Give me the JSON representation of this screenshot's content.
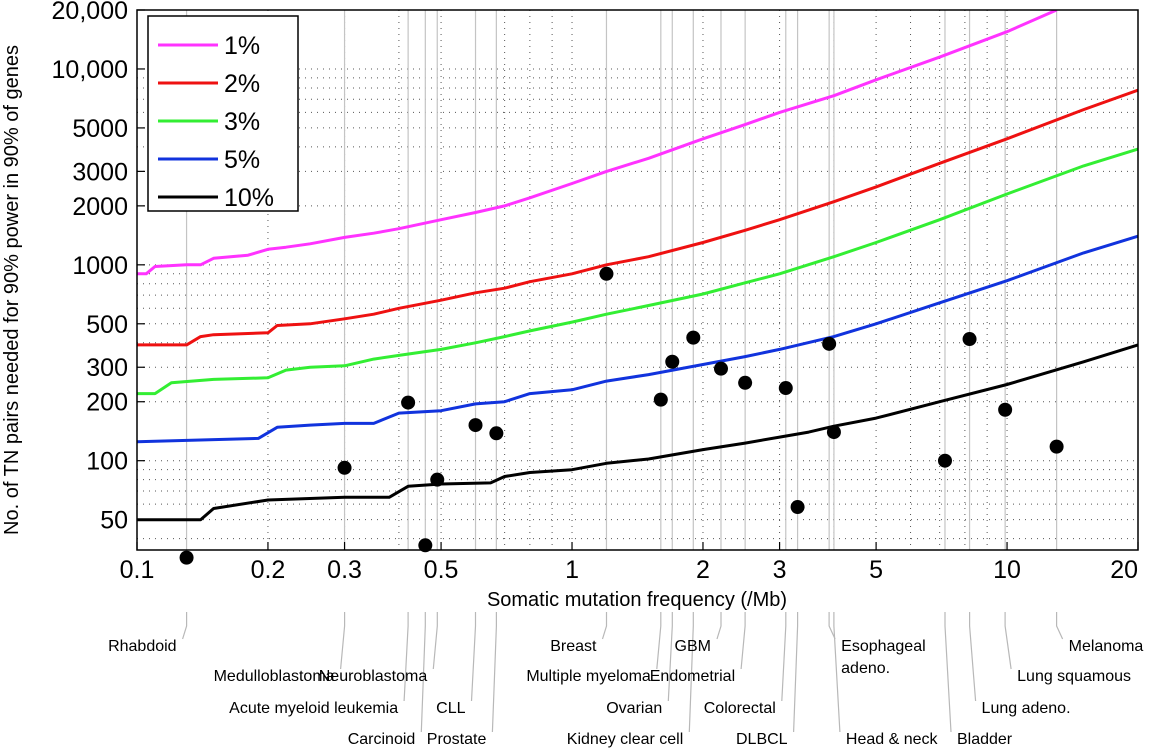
{
  "chart_data": {
    "type": "line",
    "xlabel": "Somatic mutation frequency (/Mb)",
    "ylabel": "No. of TN pairs needed for 90% power in 90% of genes",
    "x_scale": "log",
    "y_scale": "log",
    "xlim": [
      0.1,
      20
    ],
    "ylim": [
      35,
      20000
    ],
    "x_ticks": [
      0.1,
      0.2,
      0.3,
      0.5,
      1,
      2,
      3,
      5,
      10,
      20
    ],
    "x_tick_labels": [
      "0.1",
      "0.2",
      "0.3",
      "0.5",
      "1",
      "2",
      "3",
      "5",
      "10",
      "20"
    ],
    "y_ticks": [
      50,
      100,
      200,
      300,
      500,
      1000,
      2000,
      3000,
      5000,
      10000,
      20000
    ],
    "y_tick_labels": [
      "50",
      "100",
      "200",
      "300",
      "500",
      "1000",
      "2000",
      "3000",
      "5000",
      "10,000",
      "20,000"
    ],
    "grid": "dotted",
    "legend_position": "top-left",
    "series": [
      {
        "name": "1%",
        "color": "#ff33ff",
        "x": [
          0.1,
          0.105,
          0.11,
          0.13,
          0.14,
          0.15,
          0.18,
          0.2,
          0.22,
          0.25,
          0.3,
          0.35,
          0.4,
          0.5,
          0.6,
          0.7,
          0.8,
          1,
          1.2,
          1.5,
          2,
          2.5,
          3,
          4,
          5,
          7,
          10,
          13
        ],
        "y": [
          900,
          900,
          980,
          1000,
          1000,
          1080,
          1120,
          1200,
          1230,
          1280,
          1380,
          1450,
          1530,
          1700,
          1850,
          2000,
          2200,
          2600,
          3000,
          3500,
          4400,
          5200,
          6000,
          7300,
          8800,
          11500,
          15500,
          20000
        ]
      },
      {
        "name": "2%",
        "color": "#ee1111",
        "x": [
          0.1,
          0.13,
          0.14,
          0.15,
          0.2,
          0.21,
          0.25,
          0.3,
          0.35,
          0.4,
          0.5,
          0.6,
          0.7,
          0.8,
          1,
          1.2,
          1.5,
          2,
          2.5,
          3,
          4,
          5,
          7,
          10,
          15,
          20
        ],
        "y": [
          390,
          390,
          430,
          440,
          450,
          490,
          500,
          530,
          560,
          600,
          660,
          720,
          760,
          820,
          900,
          1000,
          1100,
          1300,
          1500,
          1700,
          2100,
          2500,
          3300,
          4400,
          6200,
          7800
        ]
      },
      {
        "name": "3%",
        "color": "#33ee33",
        "x": [
          0.1,
          0.11,
          0.12,
          0.15,
          0.2,
          0.22,
          0.25,
          0.3,
          0.35,
          0.4,
          0.5,
          0.6,
          0.7,
          0.8,
          1,
          1.2,
          1.5,
          2,
          2.5,
          3,
          4,
          5,
          7,
          10,
          15,
          20
        ],
        "y": [
          220,
          220,
          250,
          260,
          265,
          290,
          300,
          305,
          330,
          345,
          370,
          400,
          430,
          460,
          510,
          560,
          620,
          710,
          810,
          900,
          1100,
          1300,
          1700,
          2300,
          3200,
          3900
        ]
      },
      {
        "name": "5%",
        "color": "#1133dd",
        "x": [
          0.1,
          0.19,
          0.21,
          0.25,
          0.3,
          0.35,
          0.4,
          0.5,
          0.6,
          0.7,
          0.8,
          1,
          1.2,
          1.5,
          2,
          2.5,
          3,
          4,
          5,
          7,
          10,
          15,
          20
        ],
        "y": [
          125,
          130,
          148,
          152,
          155,
          155,
          175,
          180,
          195,
          200,
          220,
          230,
          255,
          275,
          310,
          340,
          370,
          430,
          500,
          640,
          830,
          1150,
          1400
        ]
      },
      {
        "name": "10%",
        "color": "#000000",
        "x": [
          0.1,
          0.14,
          0.15,
          0.2,
          0.3,
          0.38,
          0.42,
          0.5,
          0.65,
          0.7,
          0.8,
          1,
          1.2,
          1.5,
          2,
          2.5,
          3,
          3.5,
          4,
          5,
          7,
          10,
          15,
          20
        ],
        "y": [
          50,
          50,
          57,
          63,
          65,
          65,
          74,
          76,
          77,
          83,
          87,
          90,
          97,
          102,
          114,
          123,
          132,
          140,
          150,
          165,
          200,
          245,
          320,
          390
        ]
      }
    ],
    "points": [
      {
        "name": "Rhabdoid",
        "x": 0.13,
        "y": 32
      },
      {
        "name": "Medulloblastoma",
        "x": 0.3,
        "y": 92
      },
      {
        "name": "Acute myeloid leukemia",
        "x": 0.42,
        "y": 198
      },
      {
        "name": "Carcinoid",
        "x": 0.46,
        "y": 37
      },
      {
        "name": "Neuroblastoma",
        "x": 0.49,
        "y": 80
      },
      {
        "name": "CLL",
        "x": 0.6,
        "y": 152
      },
      {
        "name": "Prostate",
        "x": 0.67,
        "y": 138
      },
      {
        "name": "Breast",
        "x": 1.2,
        "y": 900
      },
      {
        "name": "Multiple myeloma",
        "x": 1.6,
        "y": 205
      },
      {
        "name": "Kidney clear cell",
        "x": 1.7,
        "y": 320
      },
      {
        "name": "Ovarian",
        "x": 1.9,
        "y": 425
      },
      {
        "name": "GBM",
        "x": 2.2,
        "y": 295
      },
      {
        "name": "Endometrial",
        "x": 2.5,
        "y": 250
      },
      {
        "name": "Colorectal",
        "x": 3.1,
        "y": 235
      },
      {
        "name": "DLBCL",
        "x": 3.3,
        "y": 58
      },
      {
        "name": "Head & neck",
        "x": 3.9,
        "y": 395
      },
      {
        "name": "Esophageal adeno.",
        "x": 4.0,
        "y": 140
      },
      {
        "name": "Bladder",
        "x": 7.2,
        "y": 100
      },
      {
        "name": "Lung adeno.",
        "x": 8.2,
        "y": 418
      },
      {
        "name": "Lung squamous",
        "x": 9.9,
        "y": 182
      },
      {
        "name": "Melanoma",
        "x": 13,
        "y": 118
      }
    ],
    "cancer_labels": [
      {
        "lines": [
          "Rhabdoid"
        ],
        "x": 0.13,
        "anchor": "end",
        "row": 1
      },
      {
        "lines": [
          "Medulloblastoma"
        ],
        "x": 0.3,
        "anchor": "end",
        "row": 2
      },
      {
        "lines": [
          "Acute myeloid leukemia"
        ],
        "x": 0.42,
        "anchor": "end",
        "row": 3
      },
      {
        "lines": [
          "Carcinoid"
        ],
        "x": 0.46,
        "anchor": "end",
        "row": 4
      },
      {
        "lines": [
          "Neuroblastoma"
        ],
        "x": 0.49,
        "anchor": "end",
        "row": 2
      },
      {
        "lines": [
          "CLL"
        ],
        "x": 0.6,
        "anchor": "end",
        "row": 3
      },
      {
        "lines": [
          "Prostate"
        ],
        "x": 0.67,
        "anchor": "end",
        "row": 4
      },
      {
        "lines": [
          "Breast"
        ],
        "x": 1.2,
        "anchor": "end",
        "row": 1
      },
      {
        "lines": [
          "Multiple myeloma"
        ],
        "x": 1.6,
        "anchor": "end",
        "row": 2
      },
      {
        "lines": [
          "Ovarian"
        ],
        "x": 1.7,
        "anchor": "end",
        "row": 3
      },
      {
        "lines": [
          "Kidney clear cell"
        ],
        "x": 1.9,
        "anchor": "end",
        "row": 4
      },
      {
        "lines": [
          "GBM"
        ],
        "x": 2.2,
        "anchor": "end",
        "row": 1
      },
      {
        "lines": [
          "Endometrial"
        ],
        "x": 2.5,
        "anchor": "end",
        "row": 2
      },
      {
        "lines": [
          "Colorectal"
        ],
        "x": 3.1,
        "anchor": "end",
        "row": 3
      },
      {
        "lines": [
          "DLBCL"
        ],
        "x": 3.3,
        "anchor": "end",
        "row": 4
      },
      {
        "lines": [
          "Esophageal",
          "adeno."
        ],
        "x": 3.9,
        "anchor": "start",
        "row": 1
      },
      {
        "lines": [
          "Head & neck"
        ],
        "x": 4.0,
        "anchor": "start",
        "row": 4
      },
      {
        "lines": [
          "Bladder"
        ],
        "x": 7.2,
        "anchor": "start",
        "row": 4
      },
      {
        "lines": [
          "Lung adeno."
        ],
        "x": 8.2,
        "anchor": "start",
        "row": 3
      },
      {
        "lines": [
          "Lung squamous"
        ],
        "x": 9.9,
        "anchor": "start",
        "row": 2
      },
      {
        "lines": [
          "Melanoma"
        ],
        "x": 13,
        "anchor": "start",
        "row": 1
      }
    ]
  }
}
